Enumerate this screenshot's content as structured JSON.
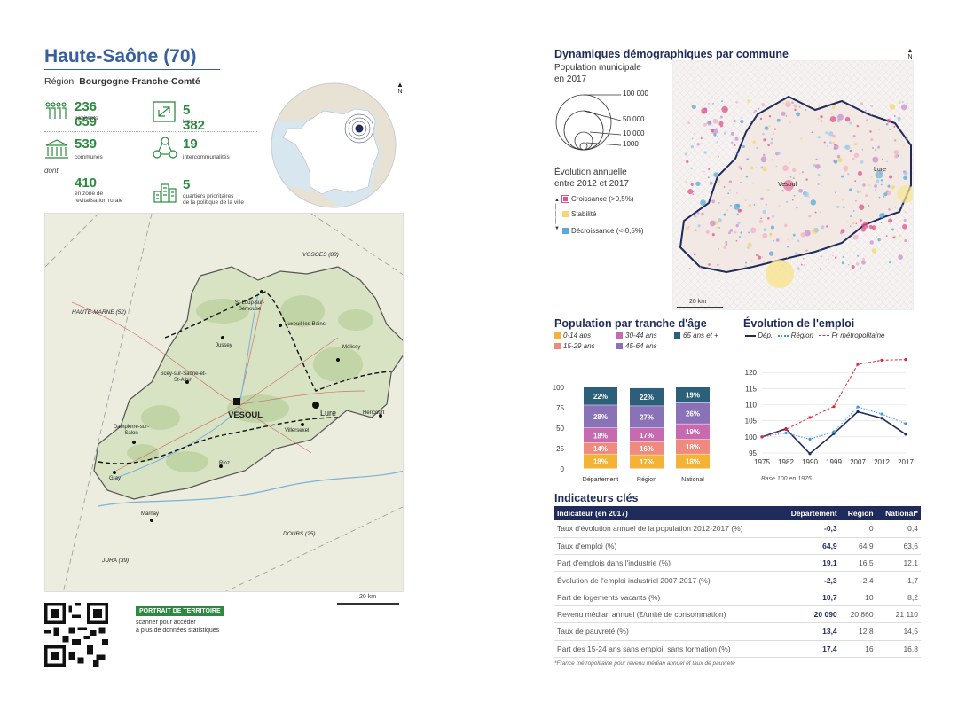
{
  "header": {
    "title": "Haute-Saône (70)",
    "region_label": "Région",
    "region_name": "Bourgogne-Franche-Comté"
  },
  "stats": {
    "population": {
      "value": "236 659",
      "label": "habitants"
    },
    "area": {
      "value": "5 382",
      "label": "km²"
    },
    "communes": {
      "value": "539",
      "label": "communes"
    },
    "intercos": {
      "value": "19",
      "label": "intercommunalités"
    },
    "dont": "dont",
    "zrr": {
      "value": "410",
      "label1": "en zone de",
      "label2": "revitalisation rurale"
    },
    "qpv": {
      "value": "5",
      "label1": "quartiers prioritaires",
      "label2": "de la politique de la ville"
    }
  },
  "north_label": "N",
  "map": {
    "neighbors": [
      "HAUTE-MARNE (52)",
      "VOSGES (88)",
      "DOUBS (25)",
      "JURA (39)"
    ],
    "towns": [
      "St-Loup-sur-Semouse",
      "Luxeuil-les-Bains",
      "Mélisey",
      "Jussey",
      "Scey-sur-Saône-et-St-Albin",
      "Lure",
      "VESOUL",
      "Villersexel",
      "Héricourt",
      "Dampierre-sur-Salon",
      "Gray",
      "Rioz",
      "Marnay"
    ],
    "scale": "20 km"
  },
  "qr": {
    "badge": "PORTRAIT DE TERRITOIRE",
    "line1": "scanner pour accéder",
    "line2": "à plus de données statistiques"
  },
  "demo": {
    "title": "Dynamiques démographiques par commune",
    "pop_title": "Population municipale",
    "pop_sub": "en 2017",
    "circle_labels": [
      "100 000",
      "50 000",
      "10 000",
      "1000"
    ],
    "evo_title": "Évolution annuelle",
    "evo_sub": "entre 2012 et 2017",
    "evo_items": [
      {
        "label": "Croissance (>0,5%)",
        "color": "#e0508a"
      },
      {
        "label": "Stabilité",
        "color": "#f5d770"
      },
      {
        "label": "Décroissance (<-0,5%)",
        "color": "#5aa8dc"
      }
    ],
    "map_towns": [
      "Lure",
      "Vesoul"
    ],
    "scale": "20 km"
  },
  "age": {
    "title": "Population par tranche d'âge",
    "legend": [
      {
        "label": "0-14 ans",
        "color": "#f5b335"
      },
      {
        "label": "30-44 ans",
        "color": "#c76ab0"
      },
      {
        "label": "65 ans et +",
        "color": "#2c5f7a"
      },
      {
        "label": "15-29 ans",
        "color": "#f08a7e"
      },
      {
        "label": "45-64 ans",
        "color": "#8a72b8"
      }
    ]
  },
  "emploi": {
    "title": "Évolution de l'emploi",
    "legend": [
      "Dép.",
      "Région",
      "Fr métropolitaine"
    ],
    "base_note": "Base 100 en 1975"
  },
  "chart_data": [
    {
      "type": "bar",
      "stacked": true,
      "title": "Population par tranche d'âge",
      "categories": [
        "Département",
        "Région",
        "National"
      ],
      "series": [
        {
          "name": "0-14 ans",
          "values": [
            18,
            17,
            18
          ],
          "color": "#f5b335"
        },
        {
          "name": "15-29 ans",
          "values": [
            14,
            16,
            18
          ],
          "color": "#f08a7e"
        },
        {
          "name": "30-44 ans",
          "values": [
            18,
            17,
            19
          ],
          "color": "#c76ab0"
        },
        {
          "name": "45-64 ans",
          "values": [
            28,
            27,
            26
          ],
          "color": "#8a72b8"
        },
        {
          "name": "65 ans et +",
          "values": [
            22,
            22,
            19
          ],
          "color": "#2c5f7a"
        }
      ],
      "ylim": [
        0,
        100
      ],
      "yticks": [
        0,
        25,
        50,
        75,
        100
      ]
    },
    {
      "type": "line",
      "title": "Évolution de l'emploi",
      "x": [
        "1975",
        "1982",
        "1990",
        "1999",
        "2007",
        "2012",
        "2017"
      ],
      "series": [
        {
          "name": "Dép.",
          "values": [
            100,
            102.5,
            94.8,
            101,
            107.8,
            105.8,
            100.8
          ],
          "color": "#1f2b5b",
          "dash": "solid"
        },
        {
          "name": "Région",
          "values": [
            100,
            101.2,
            99.3,
            101.6,
            109.3,
            107.1,
            104.1
          ],
          "color": "#3a9ad9",
          "dash": "dotted"
        },
        {
          "name": "Fr métropolitaine",
          "values": [
            100,
            102.3,
            106,
            109.4,
            122.5,
            123.8,
            124
          ],
          "color": "#d62b3a",
          "dash": "dashed"
        }
      ],
      "ylim": [
        95,
        125
      ],
      "yticks": [
        95,
        100,
        105,
        110,
        115,
        120
      ]
    }
  ],
  "indicators": {
    "title": "Indicateurs clés",
    "columns": [
      "Indicateur (en 2017)",
      "Département",
      "Région",
      "National*"
    ],
    "rows": [
      [
        "Taux d'évolution annuel de la population 2012-2017 (%)",
        "-0,3",
        "0",
        "0,4"
      ],
      [
        "Taux d'emploi (%)",
        "64,9",
        "64,9",
        "63,6"
      ],
      [
        "Part d'emplois dans l'industrie (%)",
        "19,1",
        "16,5",
        "12,1"
      ],
      [
        "Évolution de l'emploi industriel 2007-2017 (%)",
        "-2,3",
        "-2,4",
        "-1,7"
      ],
      [
        "Part de logements vacants (%)",
        "10,7",
        "10",
        "8,2"
      ],
      [
        "Revenu médian annuel (€/unité de consommation)",
        "20 090",
        "20 860",
        "21 110"
      ],
      [
        "Taux de pauvreté (%)",
        "13,4",
        "12,8",
        "14,5"
      ],
      [
        "Part des 15-24 ans sans emploi, sans formation (%)",
        "17,4",
        "16",
        "16,8"
      ]
    ],
    "footnote": "*France métropolitaine pour revenu médian annuel et taux de pauvreté"
  }
}
